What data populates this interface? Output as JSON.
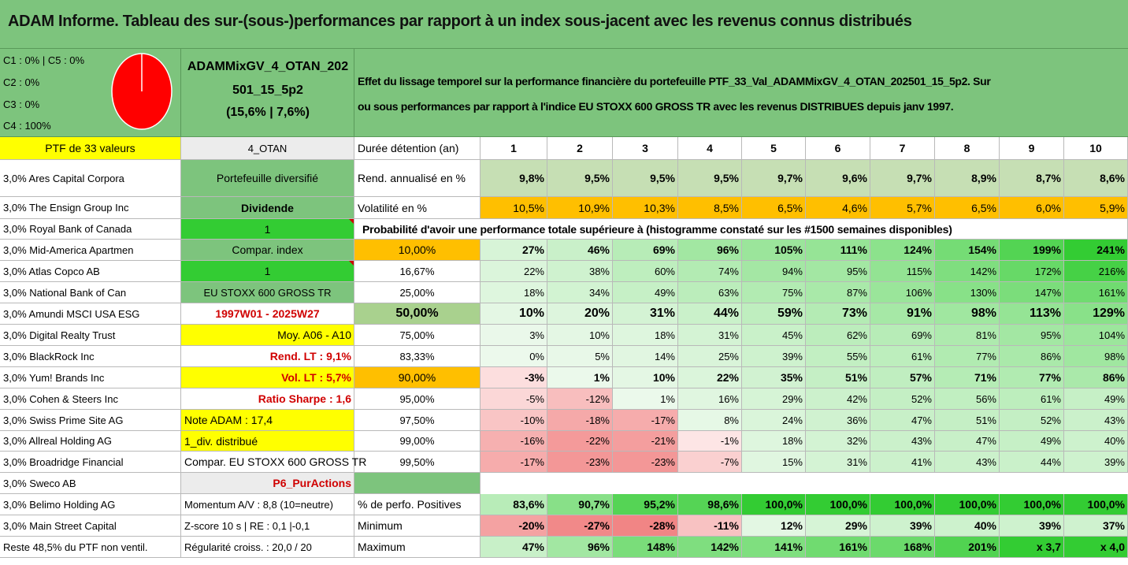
{
  "title": "ADAM Informe. Tableau des sur-(sous-)performances par rapport à un index sous-jacent avec les revenus connus distribués",
  "header": {
    "allocation": [
      "C1 : 0% | C5 : 0%",
      "C2 : 0%",
      "C3 : 0%",
      "C4 : 100%"
    ],
    "pie_color": "#ff0000",
    "portfolio_name_1": "ADAMMixGV_4_OTAN_202",
    "portfolio_name_2": "501_15_5p2",
    "portfolio_perf": "(15,6% | 7,6%)",
    "description_1": "Effet du lissage temporel sur la performance financière du portefeuille PTF_33_Val_ADAMMixGV_4_OTAN_202501_15_5p2. Sur",
    "description_2": "ou sous performances par rapport à l'indice EU STOXX 600 GROSS TR avec les revenus DISTRIBUES depuis janv 1997."
  },
  "left_col": [
    "PTF de 33 valeurs",
    "3,0% Ares Capital Corpora",
    "3,0% The Ensign Group Inc",
    "3,0% Royal Bank of Canada",
    "3,0% Mid-America Apartmen",
    "3,0% Atlas Copco AB",
    "3,0% National Bank of Can",
    "3,0% Amundi MSCI USA ESG",
    "3,0% Digital Realty Trust",
    "3,0% BlackRock Inc",
    "3,0% Yum! Brands Inc",
    "3,0% Cohen & Steers Inc",
    "3,0% Swiss Prime Site AG",
    "3,0% Allreal Holding AG",
    "3,0% Broadridge Financial",
    "3,0% Sweco AB",
    "3,0% Belimo Holding AG",
    "3,0% Main Street Capital",
    "Reste 48,5% du PTF non ventil."
  ],
  "mid_col": [
    "4_OTAN",
    "Portefeuille diversifié",
    "Dividende",
    "1",
    "Compar. index",
    "1",
    "EU STOXX 600 GROSS TR",
    "1997W01 - 2025W27",
    "Moy. A06 - A10",
    "Rend. LT : 9,1%",
    "Vol. LT : 5,7%",
    "Ratio Sharpe : 1,6",
    "Note ADAM : 17,4",
    "1_div. distribué",
    "Compar. EU STOXX 600 GROSS TR",
    "P6_PurActions",
    "Momentum A/V : 8,8 (10=neutre)",
    "Z-score 10 s | RE : 0,1 |-0,1",
    "Régularité croiss. : 20,0 / 20"
  ],
  "table": {
    "holding_label": "Durée détention (an)",
    "years": [
      "1",
      "2",
      "3",
      "4",
      "5",
      "6",
      "7",
      "8",
      "9",
      "10"
    ],
    "rend_label": "Rend. annualisé en %",
    "rend": [
      "9,8%",
      "9,5%",
      "9,5%",
      "9,5%",
      "9,7%",
      "9,6%",
      "9,7%",
      "8,9%",
      "8,7%",
      "8,6%"
    ],
    "vol_label": "Volatilité en %",
    "vol": [
      "10,5%",
      "10,9%",
      "10,3%",
      "8,5%",
      "6,5%",
      "4,6%",
      "5,7%",
      "6,5%",
      "6,0%",
      "5,9%"
    ],
    "prob_title": "Probabilité d'avoir une performance totale supérieure à (histogramme constaté sur les #1500 semaines disponibles)",
    "prob_rows": [
      {
        "p": "10,00%",
        "v": [
          "27%",
          "46%",
          "69%",
          "96%",
          "105%",
          "111%",
          "124%",
          "154%",
          "199%",
          "241%"
        ]
      },
      {
        "p": "16,67%",
        "v": [
          "22%",
          "38%",
          "60%",
          "74%",
          "94%",
          "95%",
          "115%",
          "142%",
          "172%",
          "216%"
        ]
      },
      {
        "p": "25,00%",
        "v": [
          "18%",
          "34%",
          "49%",
          "63%",
          "75%",
          "87%",
          "106%",
          "130%",
          "147%",
          "161%"
        ]
      },
      {
        "p": "50,00%",
        "v": [
          "10%",
          "20%",
          "31%",
          "44%",
          "59%",
          "73%",
          "91%",
          "98%",
          "113%",
          "129%"
        ]
      },
      {
        "p": "75,00%",
        "v": [
          "3%",
          "10%",
          "18%",
          "31%",
          "45%",
          "62%",
          "69%",
          "81%",
          "95%",
          "104%"
        ]
      },
      {
        "p": "83,33%",
        "v": [
          "0%",
          "5%",
          "14%",
          "25%",
          "39%",
          "55%",
          "61%",
          "77%",
          "86%",
          "98%"
        ]
      },
      {
        "p": "90,00%",
        "v": [
          "-3%",
          "1%",
          "10%",
          "22%",
          "35%",
          "51%",
          "57%",
          "71%",
          "77%",
          "86%"
        ]
      },
      {
        "p": "95,00%",
        "v": [
          "-5%",
          "-12%",
          "1%",
          "16%",
          "29%",
          "42%",
          "52%",
          "56%",
          "61%",
          "49%"
        ]
      },
      {
        "p": "97,50%",
        "v": [
          "-10%",
          "-18%",
          "-17%",
          "8%",
          "24%",
          "36%",
          "47%",
          "51%",
          "52%",
          "43%"
        ]
      },
      {
        "p": "99,00%",
        "v": [
          "-16%",
          "-22%",
          "-21%",
          "-1%",
          "18%",
          "32%",
          "43%",
          "47%",
          "49%",
          "40%"
        ]
      },
      {
        "p": "99,50%",
        "v": [
          "-17%",
          "-23%",
          "-23%",
          "-7%",
          "15%",
          "31%",
          "41%",
          "43%",
          "44%",
          "39%"
        ]
      }
    ],
    "pos_label": "% de perfo. Positives",
    "pos": [
      "83,6%",
      "90,7%",
      "95,2%",
      "98,6%",
      "100,0%",
      "100,0%",
      "100,0%",
      "100,0%",
      "100,0%",
      "100,0%"
    ],
    "min_label": "Minimum",
    "min": [
      "-20%",
      "-27%",
      "-28%",
      "-11%",
      "12%",
      "29%",
      "39%",
      "40%",
      "39%",
      "37%"
    ],
    "max_label": "Maximum",
    "max": [
      "47%",
      "96%",
      "148%",
      "142%",
      "141%",
      "161%",
      "168%",
      "201%",
      "x 3,7",
      "x 4,0"
    ]
  },
  "colors": {
    "header_green": "#7dc47d",
    "yellow": "#ffff00",
    "lime": "#33cc33",
    "orange": "#ffbf00",
    "red_text": "#d00000"
  }
}
